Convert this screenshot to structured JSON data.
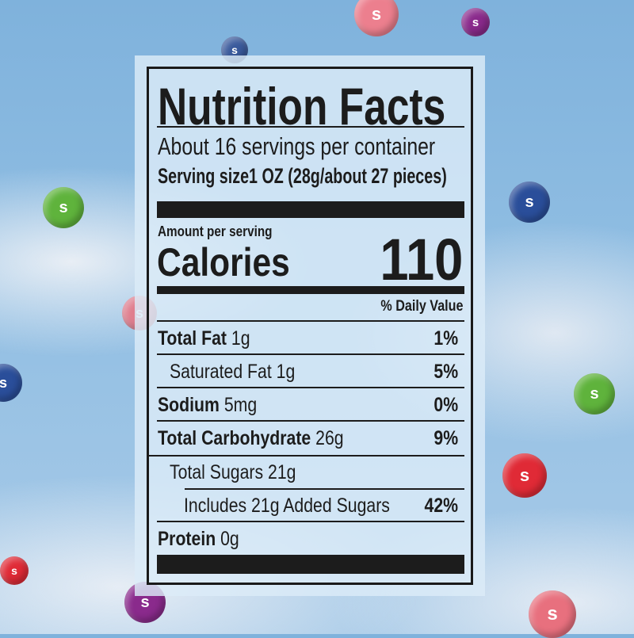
{
  "label": {
    "title": "Nutrition Facts",
    "servings": "About 16 servings per container",
    "serving_size": "Serving size1 OZ (28g/about 27 pieces)",
    "amount_per_serving": "Amount per serving",
    "calories_label": "Calories",
    "calories_value": "110",
    "daily_value_header": "% Daily Value",
    "rows": [
      {
        "name": "Total Fat",
        "amount": "1g",
        "dv": "1%"
      },
      {
        "name": "Saturated Fat",
        "amount": "1g",
        "dv": "5%"
      },
      {
        "name": "Sodium",
        "amount": "5mg",
        "dv": "0%"
      },
      {
        "name": "Total Carbohydrate",
        "amount": "26g",
        "dv": "9%"
      },
      {
        "name": "Total Sugars",
        "amount": "21g",
        "dv": ""
      },
      {
        "name": "Includes 21g Added Sugars",
        "amount": "",
        "dv": "42%"
      },
      {
        "name": "Protein",
        "amount": "0g",
        "dv": ""
      }
    ]
  },
  "candies": {
    "logo_letter": "s",
    "colors": {
      "pink": "#e8707e",
      "purple": "#8a2a8c",
      "blue": "#2a4e9a",
      "green": "#5fb33c",
      "red": "#e02a36"
    }
  }
}
